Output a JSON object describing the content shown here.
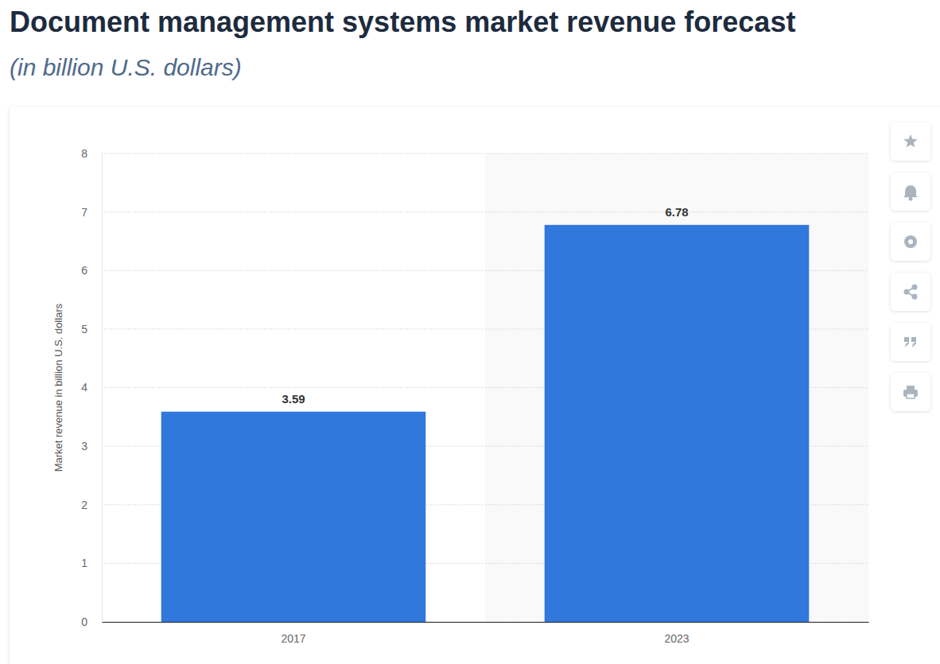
{
  "chart_data": {
    "type": "bar",
    "title": "Document management systems market revenue forecast",
    "subtitle": "(in billion U.S. dollars)",
    "y_label": "Market revenue in billion U.S. dollars",
    "categories": [
      "2017",
      "2023"
    ],
    "values": [
      3.59,
      6.78
    ],
    "color": "#3178dd",
    "ylim": [
      0,
      8
    ],
    "yticks": [
      0,
      1,
      2,
      3,
      4,
      5,
      6,
      7,
      8
    ],
    "grid": true,
    "data_labels": true
  }
}
